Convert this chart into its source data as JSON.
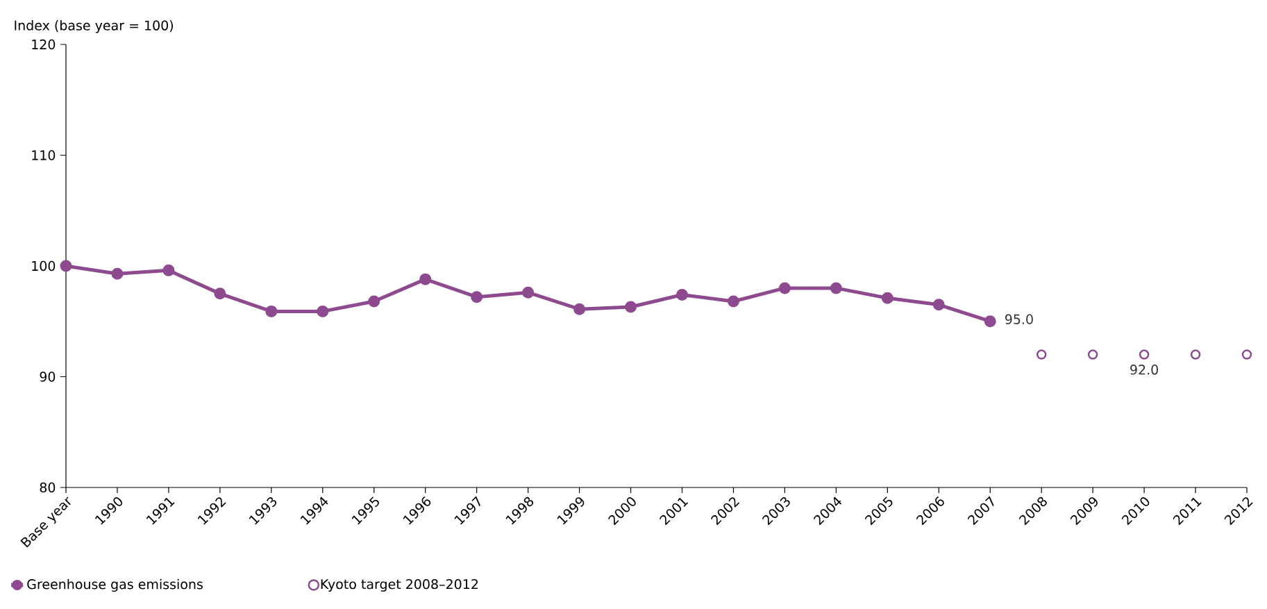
{
  "chart_data": {
    "type": "line",
    "ylabel": "Index (base year = 100)",
    "categories": [
      "Base year",
      "1990",
      "1991",
      "1992",
      "1993",
      "1994",
      "1995",
      "1996",
      "1997",
      "1998",
      "1999",
      "2000",
      "2001",
      "2002",
      "2003",
      "2004",
      "2005",
      "2006",
      "2007",
      "2008",
      "2009",
      "2010",
      "2011",
      "2012"
    ],
    "series": [
      {
        "name": "Greenhouse gas emissions",
        "type": "line",
        "color": "#8e4a8f",
        "marker": "circle",
        "values": [
          100,
          99.3,
          99.6,
          97.5,
          95.9,
          95.9,
          96.8,
          98.8,
          97.2,
          97.6,
          96.1,
          96.3,
          97.4,
          96.8,
          98.0,
          98.0,
          97.1,
          96.5,
          95.0,
          null,
          null,
          null,
          null,
          null
        ],
        "value_labels": [
          null,
          null,
          null,
          null,
          null,
          null,
          null,
          null,
          null,
          null,
          null,
          null,
          null,
          null,
          null,
          null,
          null,
          null,
          "95.0",
          null,
          null,
          null,
          null,
          null
        ]
      },
      {
        "name": "Kyoto target 2008–2012",
        "type": "scatter",
        "color": "#8e4a8f",
        "marker": "circle",
        "values": [
          null,
          null,
          null,
          null,
          null,
          null,
          null,
          null,
          null,
          null,
          null,
          null,
          null,
          null,
          null,
          null,
          null,
          null,
          null,
          92.0,
          92.0,
          92.0,
          92.0,
          92.0
        ],
        "value_labels": [
          null,
          null,
          null,
          null,
          null,
          null,
          null,
          null,
          null,
          null,
          null,
          null,
          null,
          null,
          null,
          null,
          null,
          null,
          null,
          null,
          null,
          "92.0",
          null,
          null
        ]
      }
    ],
    "ylim": [
      80,
      120
    ],
    "yticks": [
      80,
      90,
      100,
      110,
      120
    ],
    "grid": false,
    "legend": "bottom left"
  }
}
